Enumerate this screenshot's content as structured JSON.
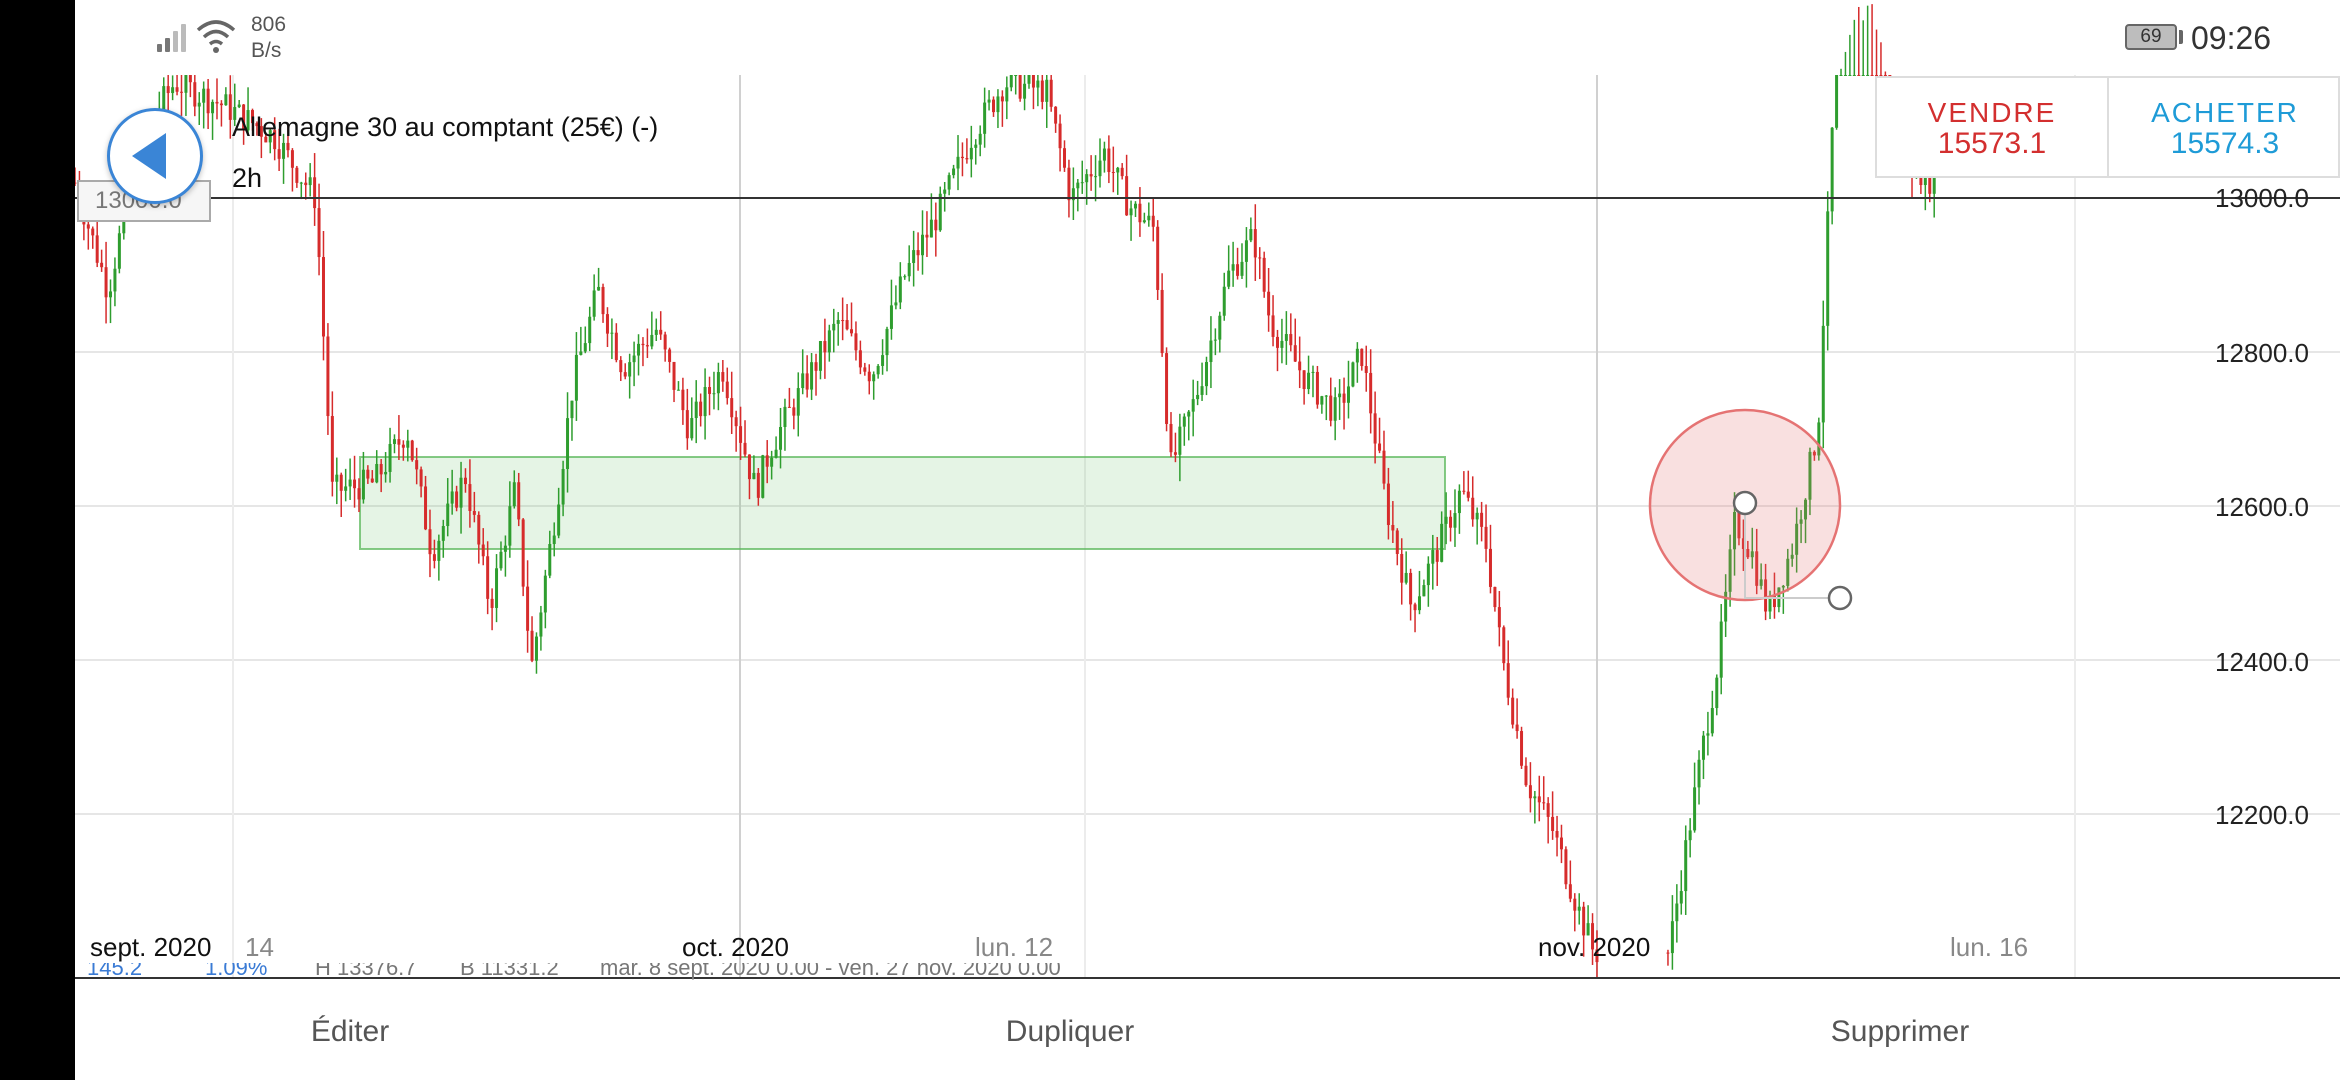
{
  "status_bar": {
    "network_speed_value": "806",
    "network_speed_unit": "B/s",
    "battery_level": "69",
    "time": "09:26",
    "icons": [
      "signal-icon",
      "wifi-icon",
      "battery-icon"
    ]
  },
  "chart": {
    "instrument": "Allemagne 30 au comptant (25€) (-)",
    "timeframe": "2h",
    "price_tag": "13000.0",
    "colors": {
      "up": "#2e9d2e",
      "down": "#d62b2b",
      "zone": "#5cb85c",
      "circle": "#e57373",
      "grid": "#e6e6e6"
    }
  },
  "trade": {
    "sell_label": "VENDRE",
    "sell_price": "15573.1",
    "buy_label": "ACHETER",
    "buy_price": "15574.3"
  },
  "y_axis": {
    "labels": [
      "13000.0",
      "12800.0",
      "12600.0",
      "12400.0",
      "12200.0"
    ]
  },
  "x_axis": {
    "labels": [
      "sept. 2020",
      "14",
      "oct. 2020",
      "lun. 12",
      "nov. 2020",
      "lun. 16"
    ]
  },
  "info_strip": {
    "change": "145.2",
    "change_pct": "1.09%",
    "high": "H 13376.7",
    "low": "B 11331.2",
    "range": "mar. 8 sept. 2020 0.00 - ven. 27 nov. 2020 0.00"
  },
  "bottom_bar": {
    "edit": "Éditer",
    "duplicate": "Dupliquer",
    "delete": "Supprimer"
  },
  "chart_data": {
    "type": "candlestick",
    "y_ticks": [
      13000,
      12800,
      12600,
      12400,
      12200
    ],
    "horizontal_line": 13000,
    "zone": {
      "from": 12670,
      "to": 12550
    },
    "close_path": [
      [
        0,
        13020
      ],
      [
        0.02,
        12880
      ],
      [
        0.04,
        13080
      ],
      [
        0.06,
        13150
      ],
      [
        0.09,
        13120
      ],
      [
        0.12,
        13080
      ],
      [
        0.145,
        13000
      ],
      [
        0.155,
        12620
      ],
      [
        0.18,
        12630
      ],
      [
        0.2,
        12700
      ],
      [
        0.215,
        12540
      ],
      [
        0.235,
        12640
      ],
      [
        0.25,
        12470
      ],
      [
        0.265,
        12620
      ],
      [
        0.275,
        12390
      ],
      [
        0.29,
        12600
      ],
      [
        0.3,
        12760
      ],
      [
        0.315,
        12880
      ],
      [
        0.33,
        12780
      ],
      [
        0.35,
        12830
      ],
      [
        0.37,
        12700
      ],
      [
        0.39,
        12780
      ],
      [
        0.41,
        12620
      ],
      [
        0.42,
        12680
      ],
      [
        0.44,
        12760
      ],
      [
        0.46,
        12840
      ],
      [
        0.48,
        12770
      ],
      [
        0.5,
        12900
      ],
      [
        0.52,
        12980
      ],
      [
        0.54,
        13080
      ],
      [
        0.56,
        13150
      ],
      [
        0.585,
        13140
      ],
      [
        0.6,
        13000
      ],
      [
        0.62,
        13060
      ],
      [
        0.635,
        12990
      ],
      [
        0.65,
        12960
      ],
      [
        0.66,
        12650
      ],
      [
        0.675,
        12740
      ],
      [
        0.695,
        12900
      ],
      [
        0.71,
        12950
      ],
      [
        0.72,
        12840
      ],
      [
        0.74,
        12770
      ],
      [
        0.76,
        12720
      ],
      [
        0.775,
        12800
      ],
      [
        0.79,
        12600
      ],
      [
        0.805,
        12470
      ],
      [
        0.82,
        12540
      ],
      [
        0.835,
        12620
      ],
      [
        0.85,
        12550
      ],
      [
        0.86,
        12400
      ],
      [
        0.875,
        12240
      ],
      [
        0.89,
        12180
      ],
      [
        0.905,
        12080
      ],
      [
        0.915,
        12020
      ],
      [
        0.96,
        12020
      ],
      [
        0.97,
        12150
      ],
      [
        0.98,
        12280
      ],
      [
        0.99,
        12400
      ],
      [
        1.0,
        12580
      ],
      [
        1.01,
        12540
      ],
      [
        1.02,
        12460
      ],
      [
        1.035,
        12550
      ],
      [
        1.05,
        12700
      ],
      [
        1.06,
        13150
      ],
      [
        1.08,
        13300
      ],
      [
        1.1,
        13060
      ],
      [
        1.12,
        13020
      ]
    ]
  }
}
